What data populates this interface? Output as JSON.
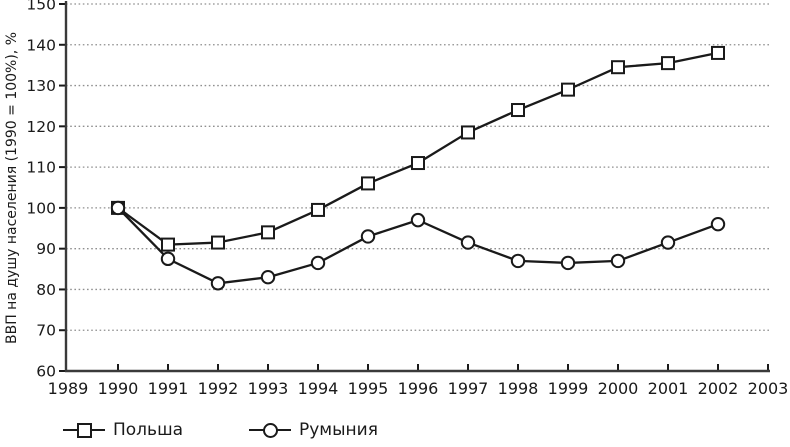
{
  "chart_data": {
    "type": "line",
    "title": "",
    "xlabel": "",
    "ylabel": "ВВП на душу населения (1990 = 100%), %",
    "xlim": [
      1989,
      2003
    ],
    "ylim": [
      60,
      150
    ],
    "x_ticks": [
      1989,
      1990,
      1991,
      1992,
      1993,
      1994,
      1995,
      1996,
      1997,
      1998,
      1999,
      2000,
      2001,
      2002,
      2003
    ],
    "y_ticks": [
      60,
      70,
      80,
      90,
      100,
      110,
      120,
      130,
      140,
      150
    ],
    "grid": "horizontal-dotted",
    "legend_position": "bottom",
    "line_color": "#1a1a1a",
    "grid_color": "#8f8f8f",
    "x": [
      1990,
      1991,
      1992,
      1993,
      1994,
      1995,
      1996,
      1997,
      1998,
      1999,
      2000,
      2001,
      2002
    ],
    "series": [
      {
        "name": "Польша",
        "marker": "square",
        "values": [
          100,
          91,
          91.5,
          94,
          99.5,
          106,
          111,
          118.5,
          124,
          129,
          134.5,
          135.5,
          138
        ]
      },
      {
        "name": "Румыния",
        "marker": "circle",
        "values": [
          100,
          87.5,
          81.5,
          83,
          86.5,
          93,
          97,
          91.5,
          87,
          86.5,
          87,
          91.5,
          96
        ]
      }
    ]
  }
}
